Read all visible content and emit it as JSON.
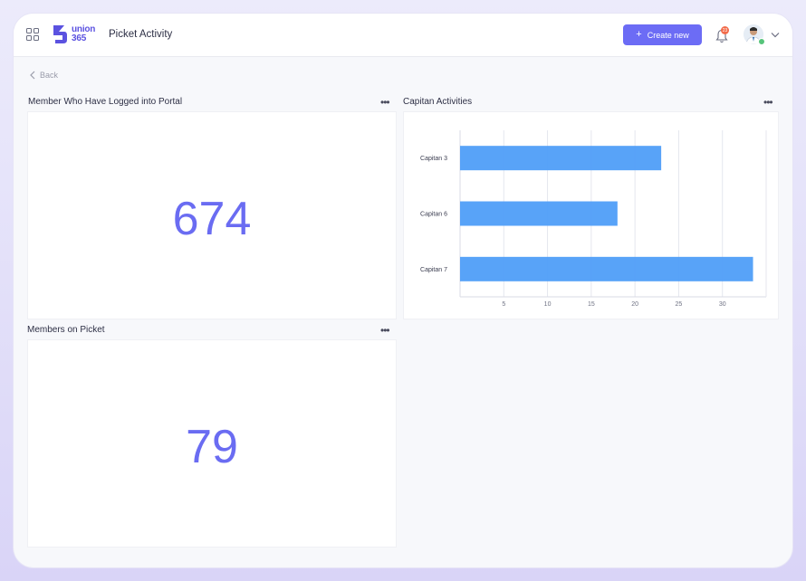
{
  "header": {
    "logo_line1": "union",
    "logo_line2": "365",
    "title": "Picket Activity",
    "create_label": "Create new",
    "notification_count": "23"
  },
  "nav": {
    "back_label": "Back"
  },
  "panels": {
    "logged_in": {
      "title": "Member Who Have Logged into Portal",
      "value": "674"
    },
    "activities": {
      "title": "Capitan Activities"
    },
    "on_picket": {
      "title": "Members on Picket",
      "value": "79"
    }
  },
  "colors": {
    "accent": "#6c6cf5",
    "bar": "#4f9ef8",
    "kpi": "#6a6cf2",
    "badge": "#f26b4a"
  },
  "chart_data": {
    "type": "bar",
    "orientation": "horizontal",
    "title": "Capitan Activities",
    "categories": [
      "Capitan 3",
      "Capitan 6",
      "Capitan 7"
    ],
    "values": [
      23,
      18,
      33.5
    ],
    "xticks": [
      5,
      10,
      15,
      20,
      25,
      30
    ],
    "xlim": [
      0,
      35
    ],
    "grid": true,
    "legend": "none"
  }
}
